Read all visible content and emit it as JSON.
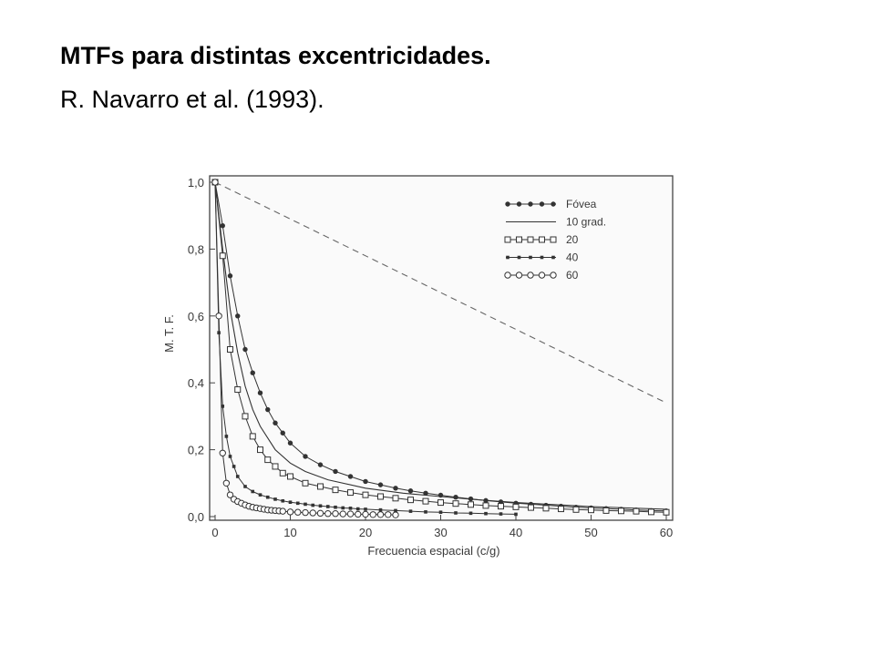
{
  "page": {
    "title": "MTFs para distintas excentricidades.",
    "subtitle": "R. Navarro et al. (1993)."
  },
  "chart_data": {
    "type": "line",
    "xlabel": "Frecuencia espacial (c/g)",
    "ylabel": "M. T. F.",
    "xlim": [
      0,
      60
    ],
    "ylim": [
      0,
      1
    ],
    "x_ticks": [
      "0",
      "10",
      "20",
      "30",
      "40",
      "50",
      "60"
    ],
    "y_ticks": [
      "0,0",
      "0,2",
      "0,4",
      "0,6",
      "0,8",
      "1,0"
    ],
    "legend_position": "top-right",
    "reference_line": {
      "x": [
        0,
        60
      ],
      "y": [
        1.0,
        0.34
      ]
    },
    "series": [
      {
        "name": "Fóvea",
        "marker": "filled-circle",
        "color": "#333333",
        "x": [
          0,
          1,
          2,
          3,
          4,
          5,
          6,
          7,
          8,
          9,
          10,
          12,
          14,
          16,
          18,
          20,
          22,
          24,
          26,
          28,
          30,
          32,
          34,
          36,
          38,
          40,
          42,
          44,
          46,
          48,
          50,
          52,
          54,
          56,
          58,
          60
        ],
        "y": [
          1.0,
          0.87,
          0.72,
          0.6,
          0.5,
          0.43,
          0.37,
          0.32,
          0.28,
          0.25,
          0.22,
          0.18,
          0.155,
          0.135,
          0.12,
          0.105,
          0.095,
          0.085,
          0.077,
          0.07,
          0.064,
          0.058,
          0.053,
          0.048,
          0.044,
          0.04,
          0.037,
          0.034,
          0.031,
          0.028,
          0.026,
          0.024,
          0.022,
          0.02,
          0.018,
          0.017
        ]
      },
      {
        "name": "10 grad.",
        "marker": "none",
        "color": "#333333",
        "x": [
          0,
          1,
          2,
          3,
          4,
          5,
          6,
          8,
          10,
          12,
          15,
          20,
          25,
          30,
          35,
          40,
          45,
          50,
          55,
          60
        ],
        "y": [
          1.0,
          0.8,
          0.62,
          0.49,
          0.39,
          0.32,
          0.27,
          0.2,
          0.16,
          0.135,
          0.11,
          0.085,
          0.07,
          0.06,
          0.05,
          0.042,
          0.036,
          0.03,
          0.026,
          0.022
        ]
      },
      {
        "name": "20",
        "marker": "open-square",
        "color": "#333333",
        "x": [
          0,
          1,
          2,
          3,
          4,
          5,
          6,
          7,
          8,
          9,
          10,
          12,
          14,
          16,
          18,
          20,
          22,
          24,
          26,
          28,
          30,
          32,
          34,
          36,
          38,
          40,
          42,
          44,
          46,
          48,
          50,
          52,
          54,
          56,
          58,
          60
        ],
        "y": [
          1.0,
          0.78,
          0.5,
          0.38,
          0.3,
          0.24,
          0.2,
          0.17,
          0.15,
          0.13,
          0.12,
          0.1,
          0.09,
          0.08,
          0.072,
          0.065,
          0.06,
          0.055,
          0.05,
          0.046,
          0.042,
          0.039,
          0.036,
          0.033,
          0.031,
          0.029,
          0.027,
          0.025,
          0.023,
          0.021,
          0.02,
          0.018,
          0.017,
          0.016,
          0.014,
          0.013
        ]
      },
      {
        "name": "40",
        "marker": "small-filled-square",
        "color": "#333333",
        "x": [
          0,
          0.5,
          1,
          1.5,
          2,
          2.5,
          3,
          4,
          5,
          6,
          7,
          8,
          9,
          10,
          11,
          12,
          13,
          14,
          15,
          16,
          17,
          18,
          19,
          20,
          22,
          24,
          26,
          28,
          30,
          32,
          34,
          36,
          38,
          40
        ],
        "y": [
          1.0,
          0.55,
          0.33,
          0.24,
          0.18,
          0.15,
          0.12,
          0.09,
          0.075,
          0.065,
          0.058,
          0.052,
          0.047,
          0.043,
          0.04,
          0.037,
          0.034,
          0.032,
          0.03,
          0.028,
          0.026,
          0.025,
          0.023,
          0.022,
          0.02,
          0.018,
          0.016,
          0.014,
          0.013,
          0.011,
          0.01,
          0.009,
          0.008,
          0.007
        ]
      },
      {
        "name": "60",
        "marker": "open-circle",
        "color": "#333333",
        "x": [
          0,
          0.5,
          1,
          1.5,
          2,
          2.5,
          3,
          3.5,
          4,
          4.5,
          5,
          5.5,
          6,
          6.5,
          7,
          7.5,
          8,
          8.5,
          9,
          10,
          11,
          12,
          13,
          14,
          15,
          16,
          17,
          18,
          19,
          20,
          21,
          22,
          23,
          24
        ],
        "y": [
          1.0,
          0.6,
          0.19,
          0.1,
          0.065,
          0.052,
          0.045,
          0.04,
          0.035,
          0.031,
          0.028,
          0.026,
          0.024,
          0.022,
          0.02,
          0.019,
          0.018,
          0.017,
          0.016,
          0.014,
          0.013,
          0.012,
          0.011,
          0.01,
          0.009,
          0.009,
          0.008,
          0.008,
          0.007,
          0.007,
          0.006,
          0.006,
          0.006,
          0.005
        ]
      }
    ]
  }
}
